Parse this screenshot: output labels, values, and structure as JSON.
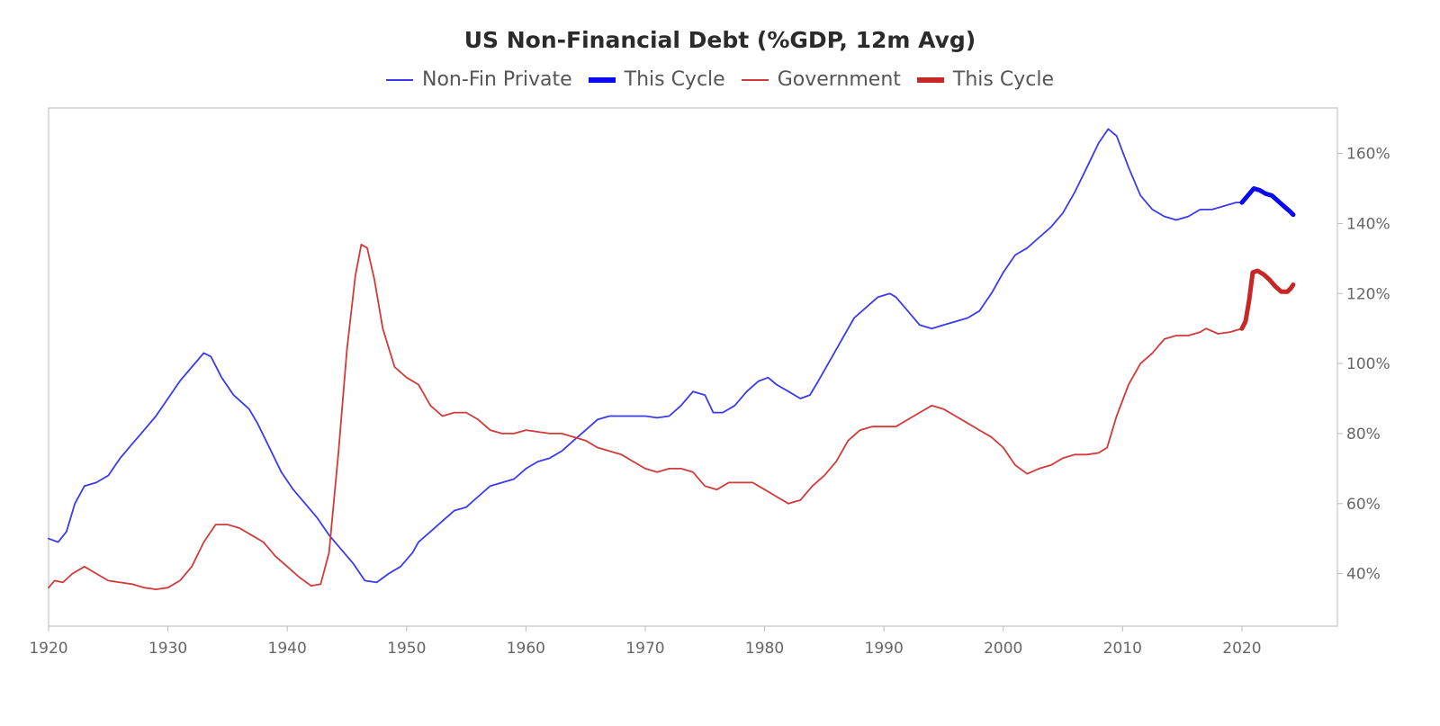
{
  "chart_data": {
    "type": "line",
    "title": "US Non-Financial Debt (%GDP, 12m Avg)",
    "xlabel": "",
    "ylabel": "",
    "xlim": [
      1920,
      2028
    ],
    "ylim": [
      25,
      173
    ],
    "x_ticks": [
      "1920",
      "1930",
      "1940",
      "1950",
      "1960",
      "1970",
      "1980",
      "1990",
      "2000",
      "2010",
      "2020"
    ],
    "y_ticks": [
      "40%",
      "60%",
      "80%",
      "100%",
      "120%",
      "140%",
      "160%"
    ],
    "y_axis_side": "right",
    "grid": false,
    "legend_position": "top-center",
    "series": [
      {
        "name": "Non-Fin Private",
        "color": "#3a3af0",
        "width": "thin",
        "points": [
          [
            1920,
            50
          ],
          [
            1920.8,
            49
          ],
          [
            1921.5,
            52
          ],
          [
            1922.2,
            60
          ],
          [
            1923,
            65
          ],
          [
            1924,
            66
          ],
          [
            1925,
            68
          ],
          [
            1926,
            73
          ],
          [
            1927,
            77
          ],
          [
            1928,
            81
          ],
          [
            1929,
            85
          ],
          [
            1930,
            90
          ],
          [
            1931,
            95
          ],
          [
            1932,
            99
          ],
          [
            1933,
            103
          ],
          [
            1933.6,
            102
          ],
          [
            1934.5,
            96
          ],
          [
            1935.5,
            91
          ],
          [
            1936.8,
            87
          ],
          [
            1937.5,
            83
          ],
          [
            1938.5,
            76
          ],
          [
            1939.5,
            69
          ],
          [
            1940.5,
            64
          ],
          [
            1941.5,
            60
          ],
          [
            1942.5,
            56
          ],
          [
            1943.5,
            51
          ],
          [
            1944.5,
            47
          ],
          [
            1945.5,
            43
          ],
          [
            1946.5,
            38
          ],
          [
            1947.5,
            37.5
          ],
          [
            1948.5,
            40
          ],
          [
            1949.5,
            42
          ],
          [
            1950.5,
            46
          ],
          [
            1951,
            49
          ],
          [
            1952,
            52
          ],
          [
            1953,
            55
          ],
          [
            1954,
            58
          ],
          [
            1955,
            59
          ],
          [
            1956,
            62
          ],
          [
            1957,
            65
          ],
          [
            1958,
            66
          ],
          [
            1959,
            67
          ],
          [
            1960,
            70
          ],
          [
            1961,
            72
          ],
          [
            1962,
            73
          ],
          [
            1963,
            75
          ],
          [
            1964,
            78
          ],
          [
            1965,
            81
          ],
          [
            1966,
            84
          ],
          [
            1967,
            85
          ],
          [
            1968,
            85
          ],
          [
            1969,
            85
          ],
          [
            1970,
            85
          ],
          [
            1971,
            84.5
          ],
          [
            1972,
            85
          ],
          [
            1973,
            88
          ],
          [
            1974,
            92
          ],
          [
            1975,
            91
          ],
          [
            1975.7,
            86
          ],
          [
            1976.5,
            86
          ],
          [
            1977.5,
            88
          ],
          [
            1978.5,
            92
          ],
          [
            1979.5,
            95
          ],
          [
            1980.3,
            96
          ],
          [
            1981,
            94
          ],
          [
            1982,
            92
          ],
          [
            1983,
            90
          ],
          [
            1983.8,
            91
          ],
          [
            1984.5,
            95
          ],
          [
            1985.5,
            101
          ],
          [
            1986.5,
            107
          ],
          [
            1987.5,
            113
          ],
          [
            1988.5,
            116
          ],
          [
            1989.5,
            119
          ],
          [
            1990.5,
            120
          ],
          [
            1991,
            119
          ],
          [
            1992,
            115
          ],
          [
            1993,
            111
          ],
          [
            1994,
            110
          ],
          [
            1995,
            111
          ],
          [
            1996,
            112
          ],
          [
            1997,
            113
          ],
          [
            1998,
            115
          ],
          [
            1999,
            120
          ],
          [
            2000,
            126
          ],
          [
            2001,
            131
          ],
          [
            2002,
            133
          ],
          [
            2003,
            136
          ],
          [
            2004,
            139
          ],
          [
            2005,
            143
          ],
          [
            2006,
            149
          ],
          [
            2007,
            156
          ],
          [
            2008,
            163
          ],
          [
            2008.8,
            167
          ],
          [
            2009.5,
            165
          ],
          [
            2010.5,
            156
          ],
          [
            2011.5,
            148
          ],
          [
            2012.5,
            144
          ],
          [
            2013.5,
            142
          ],
          [
            2014.5,
            141
          ],
          [
            2015.5,
            142
          ],
          [
            2016.5,
            144
          ],
          [
            2017.5,
            144
          ],
          [
            2018.5,
            145
          ],
          [
            2019.5,
            146
          ],
          [
            2020,
            146
          ]
        ]
      },
      {
        "name": "This Cycle",
        "color": "#0a0af2",
        "width": "thick",
        "points": [
          [
            2020,
            146
          ],
          [
            2020.5,
            148
          ],
          [
            2021,
            150
          ],
          [
            2021.5,
            149.5
          ],
          [
            2022,
            148.5
          ],
          [
            2022.5,
            148
          ],
          [
            2023,
            146.5
          ],
          [
            2023.5,
            145
          ],
          [
            2024,
            143.5
          ],
          [
            2024.3,
            142.5
          ]
        ]
      },
      {
        "name": "Government",
        "color": "#d23a3a",
        "width": "thin",
        "points": [
          [
            1920,
            36
          ],
          [
            1920.5,
            38
          ],
          [
            1921.2,
            37.5
          ],
          [
            1922,
            40
          ],
          [
            1923,
            42
          ],
          [
            1924,
            40
          ],
          [
            1925,
            38
          ],
          [
            1926,
            37.5
          ],
          [
            1927,
            37
          ],
          [
            1928,
            36
          ],
          [
            1929,
            35.5
          ],
          [
            1930,
            36
          ],
          [
            1931,
            38
          ],
          [
            1932,
            42
          ],
          [
            1933,
            49
          ],
          [
            1934,
            54
          ],
          [
            1935,
            54
          ],
          [
            1936,
            53
          ],
          [
            1937,
            51
          ],
          [
            1938,
            49
          ],
          [
            1939,
            45
          ],
          [
            1940,
            42
          ],
          [
            1941,
            39
          ],
          [
            1942,
            36.5
          ],
          [
            1942.8,
            37
          ],
          [
            1943.5,
            46
          ],
          [
            1944.3,
            75
          ],
          [
            1945,
            104
          ],
          [
            1945.7,
            125
          ],
          [
            1946.2,
            134
          ],
          [
            1946.7,
            133
          ],
          [
            1947.3,
            124
          ],
          [
            1948,
            110
          ],
          [
            1949,
            99
          ],
          [
            1950,
            96
          ],
          [
            1951,
            94
          ],
          [
            1952,
            88
          ],
          [
            1953,
            85
          ],
          [
            1954,
            86
          ],
          [
            1955,
            86
          ],
          [
            1956,
            84
          ],
          [
            1957,
            81
          ],
          [
            1958,
            80
          ],
          [
            1959,
            80
          ],
          [
            1960,
            81
          ],
          [
            1961,
            80.5
          ],
          [
            1962,
            80
          ],
          [
            1963,
            80
          ],
          [
            1964,
            79
          ],
          [
            1965,
            78
          ],
          [
            1966,
            76
          ],
          [
            1967,
            75
          ],
          [
            1968,
            74
          ],
          [
            1969,
            72
          ],
          [
            1970,
            70
          ],
          [
            1971,
            69
          ],
          [
            1972,
            70
          ],
          [
            1973,
            70
          ],
          [
            1974,
            69
          ],
          [
            1975,
            65
          ],
          [
            1976,
            64
          ],
          [
            1977,
            66
          ],
          [
            1978,
            66
          ],
          [
            1979,
            66
          ],
          [
            1980,
            64
          ],
          [
            1981,
            62
          ],
          [
            1982,
            60
          ],
          [
            1983,
            61
          ],
          [
            1984,
            65
          ],
          [
            1985,
            68
          ],
          [
            1986,
            72
          ],
          [
            1987,
            78
          ],
          [
            1988,
            81
          ],
          [
            1989,
            82
          ],
          [
            1990,
            82
          ],
          [
            1991,
            82
          ],
          [
            1992,
            84
          ],
          [
            1993,
            86
          ],
          [
            1994,
            88
          ],
          [
            1995,
            87
          ],
          [
            1996,
            85
          ],
          [
            1997,
            83
          ],
          [
            1998,
            81
          ],
          [
            1999,
            79
          ],
          [
            2000,
            76
          ],
          [
            2001,
            71
          ],
          [
            2002,
            68.5
          ],
          [
            2003,
            70
          ],
          [
            2004,
            71
          ],
          [
            2005,
            73
          ],
          [
            2006,
            74
          ],
          [
            2007,
            74
          ],
          [
            2008,
            74.5
          ],
          [
            2008.7,
            76
          ],
          [
            2009.5,
            85
          ],
          [
            2010.5,
            94
          ],
          [
            2011.5,
            100
          ],
          [
            2012.5,
            103
          ],
          [
            2013.5,
            107
          ],
          [
            2014.5,
            108
          ],
          [
            2015.5,
            108
          ],
          [
            2016.5,
            109
          ],
          [
            2017,
            110
          ],
          [
            2018,
            108.5
          ],
          [
            2019,
            109
          ],
          [
            2020,
            110
          ]
        ]
      },
      {
        "name": "This Cycle",
        "color": "#c62828",
        "width": "thick",
        "points": [
          [
            2020,
            110
          ],
          [
            2020.3,
            112
          ],
          [
            2020.6,
            118
          ],
          [
            2020.9,
            126
          ],
          [
            2021.3,
            126.5
          ],
          [
            2021.8,
            125.5
          ],
          [
            2022.3,
            124
          ],
          [
            2022.8,
            122
          ],
          [
            2023.3,
            120.5
          ],
          [
            2023.8,
            120.5
          ],
          [
            2024.1,
            121.5
          ],
          [
            2024.3,
            122.5
          ]
        ]
      }
    ]
  }
}
